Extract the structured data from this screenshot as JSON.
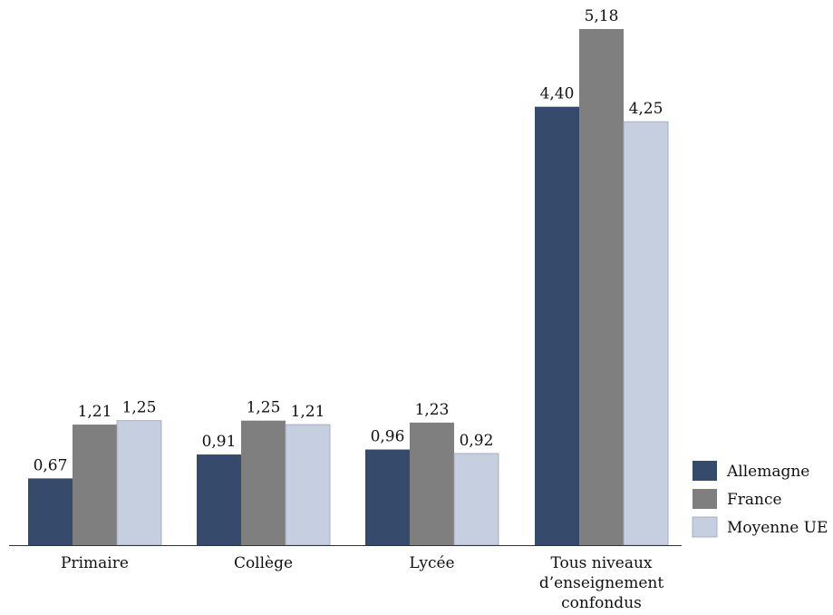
{
  "chart_data": {
    "type": "bar",
    "categories": [
      [
        "Primaire"
      ],
      [
        "Collège"
      ],
      [
        "Lycée"
      ],
      [
        "Tous niveaux",
        "d’enseignement",
        "confondus"
      ]
    ],
    "series": [
      {
        "name": "Allemagne",
        "color": "#364a6b",
        "values": [
          0.67,
          0.91,
          0.96,
          4.4
        ],
        "labels": [
          "0,67",
          "0,91",
          "0,96",
          "4,40"
        ]
      },
      {
        "name": "France",
        "color": "#7f7f7f",
        "values": [
          1.21,
          1.25,
          1.23,
          5.18
        ],
        "labels": [
          "1,21",
          "1,25",
          "1,23",
          "5,18"
        ]
      },
      {
        "name": "Moyenne UE",
        "color": "#c5cfe0",
        "values": [
          1.25,
          1.21,
          0.92,
          4.25
        ],
        "labels": [
          "1,25",
          "1,21",
          "0,92",
          "4,25"
        ]
      }
    ],
    "ylim": [
      0,
      5.18
    ],
    "grid": false,
    "legend_position": "bottom-right"
  }
}
